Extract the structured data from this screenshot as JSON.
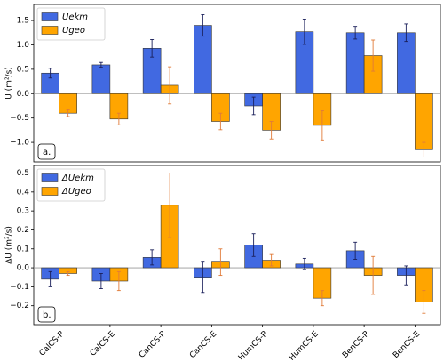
{
  "chart_data": [
    {
      "type": "bar",
      "y_label": "U (m²/s)",
      "annotation": "a.",
      "ylim": [
        -1.4,
        1.83
      ],
      "yticks": [
        {
          "value": -1.0,
          "label": "−1.0"
        },
        {
          "value": -0.5,
          "label": "−0.5"
        },
        {
          "value": 0,
          "label": "0.0"
        },
        {
          "value": 0.5,
          "label": "0.5"
        },
        {
          "value": 1.0,
          "label": "1.0"
        },
        {
          "value": 1.5,
          "label": "1.5"
        }
      ],
      "zero_line": true,
      "legend": "upper left",
      "series": [
        {
          "name": "Uekm",
          "color": "#4169e1",
          "values": [
            0.42,
            0.59,
            0.93,
            1.4,
            -0.25,
            1.27,
            1.25,
            1.25
          ],
          "errors": [
            0.1,
            0.05,
            0.18,
            0.22,
            0.18,
            0.26,
            0.13,
            0.18
          ]
        },
        {
          "name": "Ugeo",
          "color": "#ffa500",
          "values": [
            -0.4,
            -0.52,
            0.17,
            -0.57,
            -0.75,
            -0.65,
            0.78,
            -1.15
          ],
          "errors": [
            0.07,
            0.12,
            0.38,
            0.17,
            0.18,
            0.3,
            0.32,
            0.15
          ]
        }
      ]
    },
    {
      "type": "bar",
      "y_label": "ΔU (m²/s)",
      "annotation": "b.",
      "categories": [
        "CalCS-P",
        "CalCS-E",
        "CanCS-P",
        "CanCS-E",
        "HumCS-P",
        "HumCS-E",
        "BenCS-P",
        "BenCS-E"
      ],
      "ylim": [
        -0.3,
        0.54
      ],
      "yticks": [
        {
          "value": -0.2,
          "label": "−0.2"
        },
        {
          "value": -0.1,
          "label": "−0.1"
        },
        {
          "value": 0,
          "label": "0.0"
        },
        0.1,
        0.2,
        0.3,
        0.4,
        0.5
      ],
      "zero_line": true,
      "legend": "upper left",
      "series": [
        {
          "name": "ΔUekm",
          "color": "#4169e1",
          "values": [
            -0.06,
            -0.07,
            0.055,
            -0.05,
            0.12,
            0.02,
            0.09,
            -0.04
          ],
          "errors": [
            0.04,
            0.04,
            0.04,
            0.08,
            0.06,
            0.03,
            0.045,
            0.05
          ]
        },
        {
          "name": "ΔUgeo",
          "color": "#ffa500",
          "values": [
            -0.03,
            -0.07,
            0.33,
            0.03,
            0.04,
            -0.16,
            -0.04,
            -0.18
          ],
          "errors": [
            0.01,
            0.05,
            0.17,
            0.07,
            0.03,
            0.04,
            0.1,
            0.06
          ]
        }
      ]
    }
  ]
}
